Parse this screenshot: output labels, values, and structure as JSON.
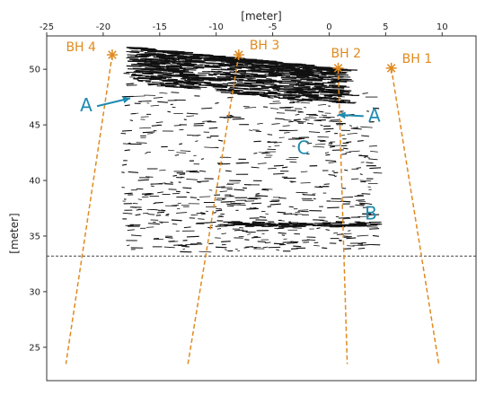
{
  "chart_data": {
    "type": "scatter",
    "xlabel": "[meter]",
    "ylabel": "[meter]",
    "xlim": [
      -25,
      13
    ],
    "ylim": [
      22,
      53
    ],
    "x_ticks": [
      -25,
      -20,
      -15,
      -10,
      -5,
      0,
      5,
      10
    ],
    "y_ticks": [
      25,
      30,
      35,
      40,
      45,
      50
    ],
    "grid": false,
    "marker_color": "#e08a1e",
    "annotation_color": "#1e8bb0",
    "reference_line_y": 33.2,
    "boreholes": [
      {
        "name": "BH 4",
        "x": -19.2,
        "y": 51.3,
        "bottom": [
          -23.3,
          23.5
        ]
      },
      {
        "name": "BH 3",
        "x": -8.0,
        "y": 51.3,
        "bottom": [
          -12.5,
          23.5
        ]
      },
      {
        "name": "BH 2",
        "x": 0.8,
        "y": 50.1,
        "bottom": [
          1.6,
          23.5
        ]
      },
      {
        "name": "BH 1",
        "x": 5.5,
        "y": 50.1,
        "bottom": [
          9.7,
          23.5
        ]
      }
    ],
    "annotations": [
      {
        "text": "A",
        "x": -21.5,
        "y": 46.2,
        "arrow_to": [
          -17.6,
          47.4
        ]
      },
      {
        "text": "A",
        "x": 4.0,
        "y": 45.3,
        "arrow_to": [
          0.8,
          45.9
        ]
      },
      {
        "text": "C",
        "x": -2.3,
        "y": 42.4
      },
      {
        "text": "B",
        "x": 3.7,
        "y": 36.5
      }
    ]
  }
}
